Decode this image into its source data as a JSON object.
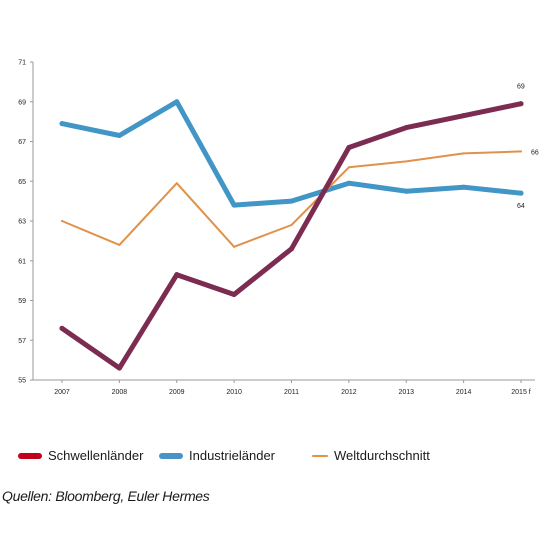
{
  "chart_data": {
    "type": "line",
    "categories": [
      "2007",
      "2008",
      "2009",
      "2010",
      "2011",
      "2012",
      "2013",
      "2014",
      "2015 f"
    ],
    "ylim": [
      55,
      71
    ],
    "yticks": [
      "55",
      "57",
      "59",
      "61",
      "63",
      "65",
      "67",
      "69",
      "71"
    ],
    "grid": false,
    "legend_position": "bottom",
    "series": [
      {
        "name": "Schwellenländer",
        "color": "#7b2c50",
        "legend_color": "#c2001a",
        "values": [
          57.6,
          55.6,
          60.3,
          59.3,
          61.6,
          66.7,
          67.7,
          68.3,
          68.9
        ]
      },
      {
        "name": "Industrieländer",
        "color": "#4196c6",
        "legend_color": "#4a92c8",
        "values": [
          67.9,
          67.3,
          69.0,
          63.8,
          64.0,
          64.9,
          64.5,
          64.7,
          64.4
        ]
      },
      {
        "name": "Weltdurchschnitt",
        "color": "#e0914a",
        "legend_color": "#e0914a",
        "values": [
          63.0,
          61.8,
          64.9,
          61.7,
          62.8,
          65.7,
          66.0,
          66.4,
          66.5
        ]
      }
    ],
    "end_labels": [
      "69",
      "64",
      "66"
    ]
  },
  "source": "Quellen: Bloomberg, Euler Hermes"
}
